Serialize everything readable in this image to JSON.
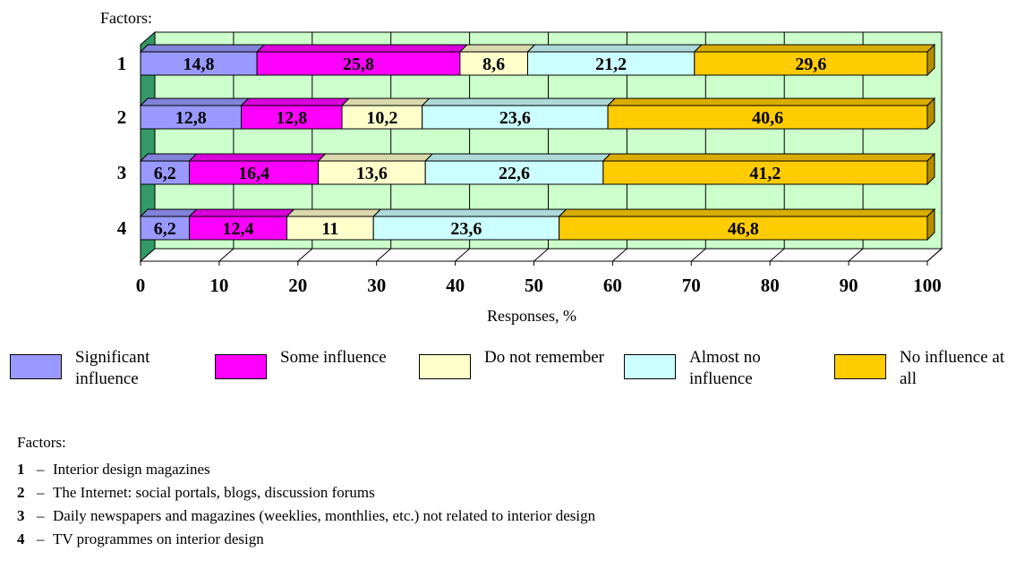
{
  "chart_data": {
    "type": "bar",
    "orientation": "horizontal",
    "stacked": true,
    "style": "3d",
    "y_title": "Factors:",
    "xlabel": "Responses, %",
    "xlim": [
      0,
      100
    ],
    "x_ticks": [
      "0",
      "10",
      "20",
      "30",
      "40",
      "50",
      "60",
      "70",
      "80",
      "90",
      "100"
    ],
    "categories": [
      "1",
      "2",
      "3",
      "4"
    ],
    "series": [
      {
        "name": "Significant influence",
        "color": "#9999ff",
        "values": [
          14.8,
          12.8,
          6.2,
          6.2
        ],
        "labels": [
          "14,8",
          "12,8",
          "6,2",
          "6,2"
        ]
      },
      {
        "name": "Some influence",
        "color": "#ff00ff",
        "values": [
          25.8,
          12.8,
          16.4,
          12.4
        ],
        "labels": [
          "25,8",
          "12,8",
          "16,4",
          "12,4"
        ]
      },
      {
        "name": "Do not remember",
        "color": "#ffffcc",
        "values": [
          8.6,
          10.2,
          13.6,
          11
        ],
        "labels": [
          "8,6",
          "10,2",
          "13,6",
          "11"
        ]
      },
      {
        "name": "Almost no influence",
        "color": "#ccffff",
        "values": [
          21.2,
          23.6,
          22.6,
          23.6
        ],
        "labels": [
          "21,2",
          "23,6",
          "22,6",
          "23,6"
        ]
      },
      {
        "name": "No influence at all",
        "color": "#ffcc00",
        "values": [
          29.6,
          40.6,
          41.2,
          46.8
        ],
        "labels": [
          "29,6",
          "40,6",
          "41,2",
          "46,8"
        ]
      }
    ],
    "plot_background": "#ccffcc",
    "side_wall_color": "#339966",
    "grid": true,
    "legend_position": "bottom"
  },
  "factors": {
    "heading": "Factors:",
    "dash": "–",
    "items": [
      {
        "num": "1",
        "text": "Interior design magazines"
      },
      {
        "num": "2",
        "text": "The Internet: social portals, blogs, discussion forums"
      },
      {
        "num": "3",
        "text": "Daily newspapers and magazines (weeklies, monthlies, etc.) not related to interior design"
      },
      {
        "num": "4",
        "text": "TV programmes on interior design"
      }
    ]
  }
}
